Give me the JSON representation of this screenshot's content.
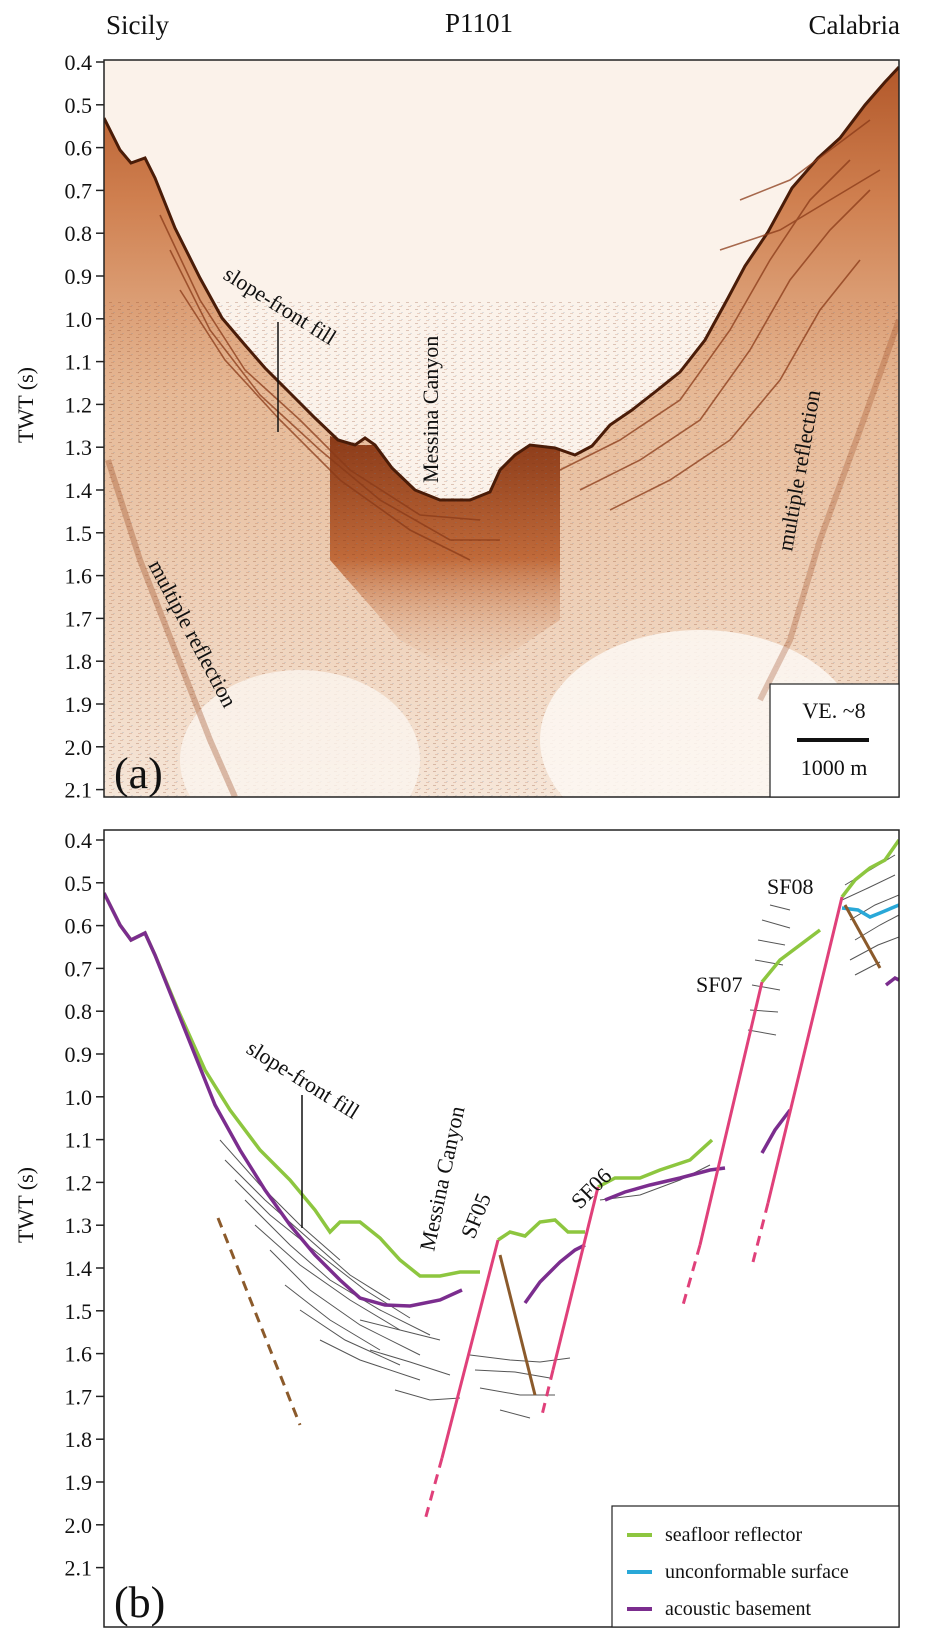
{
  "header": {
    "left_label": "Sicily",
    "center_label": "P1101",
    "right_label": "Calabria"
  },
  "axis": {
    "ylabel": "TWT (s)",
    "ticks": [
      "0.4",
      "0.5",
      "0.6",
      "0.7",
      "0.8",
      "0.9",
      "1.0",
      "1.1",
      "1.2",
      "1.3",
      "1.4",
      "1.5",
      "1.6",
      "1.7",
      "1.8",
      "1.9",
      "2.0",
      "2.1"
    ],
    "range": [
      0.4,
      2.1
    ]
  },
  "panel_a": {
    "label": "(a)",
    "annotations": {
      "slope_front_fill": "slope-front fill",
      "messina_canyon": "Messina Canyon",
      "multiple_left": "multiple reflection",
      "multiple_right": "multiple reflection"
    },
    "scale": {
      "ve": "VE. ~8",
      "bar": "1000 m"
    }
  },
  "panel_b": {
    "label": "(b)",
    "annotations": {
      "slope_front_fill": "slope-front fill",
      "messina_canyon": "Messina Canyon"
    },
    "faults": [
      "SF05",
      "SF06",
      "SF07",
      "SF08"
    ],
    "legend": [
      {
        "label": "seafloor reflector",
        "color": "#8dc63f"
      },
      {
        "label": "unconformable surface",
        "color": "#29a8d8"
      },
      {
        "label": "acoustic basement",
        "color": "#7b2d8e"
      }
    ]
  },
  "colors": {
    "seafloor": "#8dc63f",
    "unconformity": "#29a8d8",
    "basement": "#7b2d8e",
    "fault": "#e0407a",
    "fault_secondary": "#8b5a2b",
    "seismic_dark": "#7a3418",
    "seismic_mid": "#c9703e",
    "seismic_light": "#e9c3a3"
  }
}
